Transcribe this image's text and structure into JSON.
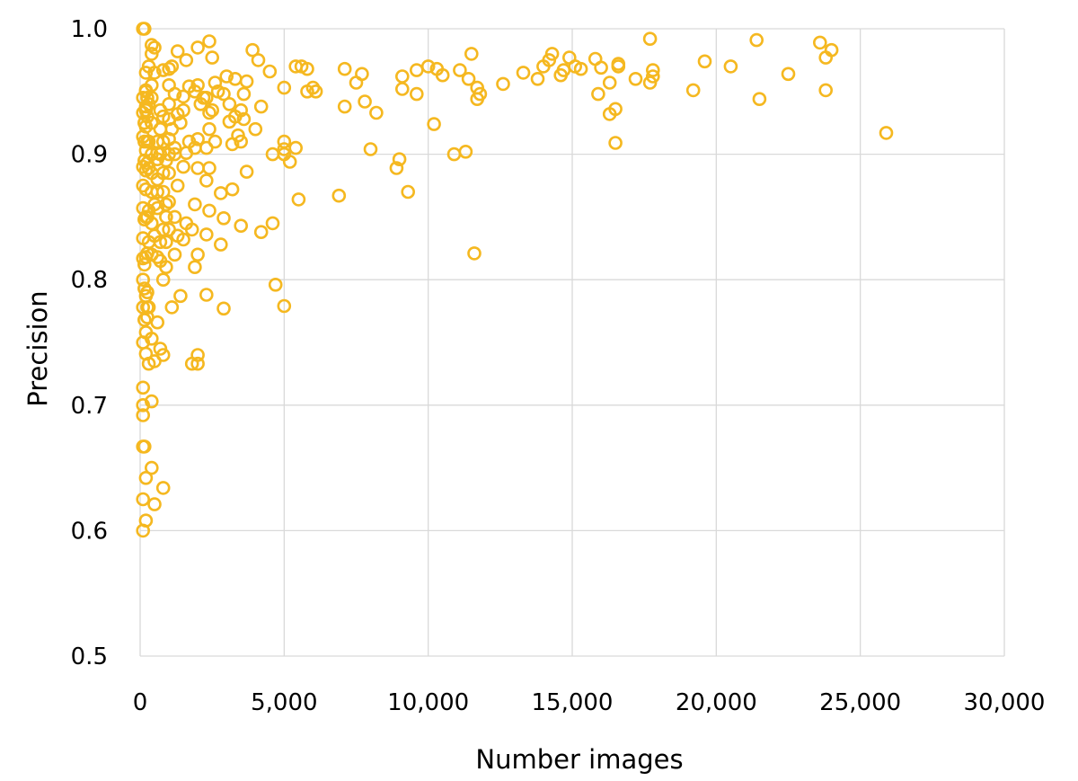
{
  "chart_data": {
    "type": "scatter",
    "title": "",
    "xlabel": "Number images",
    "ylabel": "Precision",
    "xlim": [
      0,
      30000
    ],
    "ylim": [
      0.5,
      1.0
    ],
    "xticks": [
      "0",
      "5,000",
      "10,000",
      "15,000",
      "20,000",
      "25,000",
      "30,000"
    ],
    "yticks": [
      "0.5",
      "0.6",
      "0.7",
      "0.8",
      "0.9",
      "1.0"
    ],
    "grid": true,
    "legend": "none",
    "marker": "hollow-circle",
    "color": "#F5B820",
    "series": [
      {
        "points": [
          [
            5400,
            0.97
          ],
          [
            5600,
            0.97
          ],
          [
            5800,
            0.968
          ],
          [
            7100,
            0.968
          ],
          [
            7700,
            0.964
          ],
          [
            6000,
            0.953
          ],
          [
            6100,
            0.95
          ],
          [
            5800,
            0.95
          ],
          [
            7500,
            0.957
          ],
          [
            7100,
            0.938
          ],
          [
            7800,
            0.942
          ],
          [
            8200,
            0.933
          ],
          [
            8000,
            0.904
          ],
          [
            9100,
            0.962
          ],
          [
            9600,
            0.967
          ],
          [
            10000,
            0.97
          ],
          [
            10300,
            0.968
          ],
          [
            10500,
            0.963
          ],
          [
            9100,
            0.952
          ],
          [
            9600,
            0.948
          ],
          [
            10200,
            0.924
          ],
          [
            11100,
            0.967
          ],
          [
            11400,
            0.96
          ],
          [
            11500,
            0.98
          ],
          [
            11700,
            0.953
          ],
          [
            11800,
            0.948
          ],
          [
            11700,
            0.944
          ],
          [
            12600,
            0.956
          ],
          [
            13300,
            0.965
          ],
          [
            13800,
            0.96
          ],
          [
            14000,
            0.97
          ],
          [
            14200,
            0.975
          ],
          [
            14300,
            0.98
          ],
          [
            14600,
            0.963
          ],
          [
            14700,
            0.967
          ],
          [
            14900,
            0.977
          ],
          [
            15100,
            0.97
          ],
          [
            15300,
            0.968
          ],
          [
            15800,
            0.976
          ],
          [
            16000,
            0.969
          ],
          [
            15900,
            0.948
          ],
          [
            16300,
            0.957
          ],
          [
            16300,
            0.932
          ],
          [
            16500,
            0.936
          ],
          [
            16600,
            0.97
          ],
          [
            16600,
            0.972
          ],
          [
            16500,
            0.909
          ],
          [
            17200,
            0.96
          ],
          [
            17700,
            0.992
          ],
          [
            17800,
            0.967
          ],
          [
            17800,
            0.962
          ],
          [
            17700,
            0.957
          ],
          [
            19200,
            0.951
          ],
          [
            19600,
            0.974
          ],
          [
            20500,
            0.97
          ],
          [
            21400,
            0.991
          ],
          [
            21500,
            0.944
          ],
          [
            22500,
            0.964
          ],
          [
            23600,
            0.989
          ],
          [
            23800,
            0.977
          ],
          [
            24000,
            0.983
          ],
          [
            23800,
            0.951
          ],
          [
            25900,
            0.917
          ],
          [
            9000,
            0.896
          ],
          [
            8900,
            0.889
          ],
          [
            9300,
            0.87
          ],
          [
            10900,
            0.9
          ],
          [
            11300,
            0.902
          ],
          [
            11600,
            0.821
          ],
          [
            5000,
            0.91
          ],
          [
            5000,
            0.904
          ],
          [
            5000,
            0.9
          ],
          [
            5200,
            0.894
          ],
          [
            5400,
            0.905
          ],
          [
            5500,
            0.864
          ],
          [
            6900,
            0.867
          ],
          [
            5000,
            0.953
          ],
          [
            5000,
            0.779
          ],
          [
            4700,
            0.796
          ],
          [
            4600,
            0.845
          ],
          [
            4200,
            0.838
          ],
          [
            4600,
            0.9
          ],
          [
            4500,
            0.966
          ],
          [
            4200,
            0.938
          ],
          [
            4100,
            0.975
          ],
          [
            3900,
            0.983
          ],
          [
            4000,
            0.92
          ],
          [
            3700,
            0.958
          ],
          [
            3600,
            0.948
          ],
          [
            3700,
            0.886
          ],
          [
            3500,
            0.843
          ],
          [
            3600,
            0.928
          ],
          [
            3500,
            0.91
          ],
          [
            3300,
            0.93
          ],
          [
            3200,
            0.908
          ],
          [
            3200,
            0.872
          ],
          [
            3100,
            0.926
          ],
          [
            3000,
            0.962
          ],
          [
            2900,
            0.948
          ],
          [
            2800,
            0.869
          ],
          [
            2900,
            0.849
          ],
          [
            2800,
            0.828
          ],
          [
            2900,
            0.777
          ],
          [
            2600,
            0.957
          ],
          [
            2500,
            0.977
          ],
          [
            2400,
            0.99
          ],
          [
            2300,
            0.945
          ],
          [
            2400,
            0.933
          ],
          [
            2400,
            0.92
          ],
          [
            2300,
            0.905
          ],
          [
            2400,
            0.889
          ],
          [
            2300,
            0.879
          ],
          [
            2400,
            0.855
          ],
          [
            2300,
            0.836
          ],
          [
            2300,
            0.788
          ],
          [
            2000,
            0.985
          ],
          [
            2000,
            0.955
          ],
          [
            1900,
            0.95
          ],
          [
            2100,
            0.94
          ],
          [
            2000,
            0.912
          ],
          [
            1900,
            0.905
          ],
          [
            2000,
            0.889
          ],
          [
            1900,
            0.86
          ],
          [
            2000,
            0.82
          ],
          [
            1900,
            0.81
          ],
          [
            2000,
            0.74
          ],
          [
            1800,
            0.733
          ],
          [
            2000,
            0.733
          ],
          [
            1700,
            0.954
          ],
          [
            1600,
            0.975
          ],
          [
            1500,
            0.946
          ],
          [
            1500,
            0.935
          ],
          [
            1600,
            0.901
          ],
          [
            1600,
            0.845
          ],
          [
            1500,
            0.832
          ],
          [
            1400,
            0.787
          ],
          [
            1300,
            0.982
          ],
          [
            1300,
            0.932
          ],
          [
            1200,
            0.948
          ],
          [
            1200,
            0.905
          ],
          [
            1300,
            0.875
          ],
          [
            1200,
            0.85
          ],
          [
            1300,
            0.835
          ],
          [
            1200,
            0.82
          ],
          [
            1100,
            0.778
          ],
          [
            1100,
            0.97
          ],
          [
            1000,
            0.968
          ],
          [
            1000,
            0.955
          ],
          [
            1000,
            0.94
          ],
          [
            1000,
            0.928
          ],
          [
            1000,
            0.912
          ],
          [
            1000,
            0.9
          ],
          [
            1000,
            0.885
          ],
          [
            1000,
            0.862
          ],
          [
            900,
            0.85
          ],
          [
            1000,
            0.84
          ],
          [
            900,
            0.83
          ],
          [
            900,
            0.81
          ],
          [
            800,
            0.8
          ],
          [
            800,
            0.967
          ],
          [
            800,
            0.93
          ],
          [
            800,
            0.91
          ],
          [
            800,
            0.885
          ],
          [
            800,
            0.87
          ],
          [
            800,
            0.84
          ],
          [
            800,
            0.74
          ],
          [
            700,
            0.745
          ],
          [
            600,
            0.766
          ],
          [
            600,
            0.901
          ],
          [
            600,
            0.88
          ],
          [
            500,
            0.86
          ],
          [
            500,
            0.835
          ],
          [
            500,
            0.735
          ],
          [
            500,
            0.985
          ],
          [
            500,
            0.965
          ],
          [
            400,
            0.987
          ],
          [
            400,
            0.98
          ],
          [
            400,
            0.955
          ],
          [
            400,
            0.945
          ],
          [
            400,
            0.925
          ],
          [
            400,
            0.9
          ],
          [
            400,
            0.885
          ],
          [
            400,
            0.87
          ],
          [
            400,
            0.845
          ],
          [
            400,
            0.82
          ],
          [
            400,
            0.753
          ],
          [
            400,
            0.703
          ],
          [
            400,
            0.65
          ],
          [
            500,
            0.621
          ],
          [
            800,
            0.634
          ],
          [
            300,
            0.97
          ],
          [
            300,
            0.94
          ],
          [
            300,
            0.91
          ],
          [
            300,
            0.889
          ],
          [
            300,
            0.855
          ],
          [
            300,
            0.83
          ],
          [
            300,
            0.778
          ],
          [
            300,
            0.733
          ],
          [
            200,
            0.965
          ],
          [
            200,
            0.951
          ],
          [
            200,
            0.938
          ],
          [
            200,
            0.922
          ],
          [
            200,
            0.903
          ],
          [
            200,
            0.887
          ],
          [
            200,
            0.872
          ],
          [
            200,
            0.85
          ],
          [
            200,
            0.818
          ],
          [
            200,
            0.787
          ],
          [
            200,
            0.758
          ],
          [
            200,
            0.741
          ],
          [
            200,
            0.642
          ],
          [
            200,
            0.608
          ],
          [
            150,
            1.0
          ],
          [
            100,
            1.0
          ],
          [
            100,
            0.945
          ],
          [
            100,
            0.933
          ],
          [
            100,
            0.914
          ],
          [
            100,
            0.89
          ],
          [
            100,
            0.875
          ],
          [
            100,
            0.857
          ],
          [
            100,
            0.833
          ],
          [
            100,
            0.817
          ],
          [
            100,
            0.8
          ],
          [
            100,
            0.778
          ],
          [
            100,
            0.75
          ],
          [
            100,
            0.714
          ],
          [
            100,
            0.7
          ],
          [
            100,
            0.692
          ],
          [
            100,
            0.667
          ],
          [
            100,
            0.625
          ],
          [
            100,
            0.6
          ],
          [
            200,
            0.95
          ],
          [
            200,
            0.935
          ],
          [
            150,
            0.925
          ],
          [
            150,
            0.91
          ],
          [
            150,
            0.895
          ],
          [
            150,
            0.848
          ],
          [
            150,
            0.812
          ],
          [
            150,
            0.793
          ],
          [
            150,
            0.768
          ],
          [
            150,
            0.667
          ],
          [
            250,
            0.945
          ],
          [
            250,
            0.93
          ],
          [
            250,
            0.91
          ],
          [
            250,
            0.893
          ],
          [
            250,
            0.85
          ],
          [
            250,
            0.821
          ],
          [
            250,
            0.79
          ],
          [
            250,
            0.778
          ],
          [
            250,
            0.77
          ],
          [
            600,
            0.91
          ],
          [
            600,
            0.896
          ],
          [
            600,
            0.87
          ],
          [
            600,
            0.857
          ],
          [
            600,
            0.818
          ],
          [
            700,
            0.935
          ],
          [
            700,
            0.92
          ],
          [
            700,
            0.9
          ],
          [
            700,
            0.815
          ],
          [
            700,
            0.83
          ],
          [
            900,
            0.895
          ],
          [
            900,
            0.86
          ],
          [
            1100,
            0.92
          ],
          [
            1200,
            0.9
          ],
          [
            1400,
            0.925
          ],
          [
            1500,
            0.89
          ],
          [
            1700,
            0.91
          ],
          [
            1800,
            0.84
          ],
          [
            2200,
            0.945
          ],
          [
            2500,
            0.935
          ],
          [
            2600,
            0.91
          ],
          [
            2700,
            0.95
          ],
          [
            3100,
            0.94
          ],
          [
            3300,
            0.96
          ],
          [
            3400,
            0.915
          ],
          [
            3500,
            0.935
          ]
        ]
      }
    ]
  }
}
